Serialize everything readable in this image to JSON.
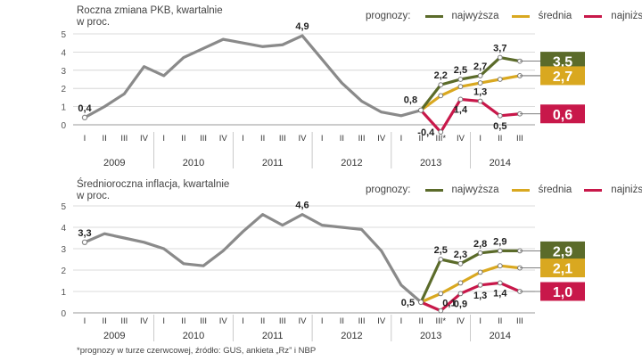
{
  "chart_data": [
    {
      "type": "line",
      "title": "Roczna zmiana PKB, kwartalnie",
      "ylabel": "w proc.",
      "ylim": [
        0,
        5
      ],
      "yticks": [
        0,
        1,
        2,
        3,
        4,
        5
      ],
      "quarter_labels": [
        "I",
        "II",
        "III",
        "IV",
        "I",
        "II",
        "III",
        "IV",
        "I",
        "II",
        "III",
        "IV",
        "I",
        "II",
        "III",
        "IV",
        "I",
        "II",
        "III*",
        "IV",
        "I",
        "II",
        "III"
      ],
      "year_labels": [
        {
          "label": "2009",
          "start": 0
        },
        {
          "label": "2010",
          "start": 4
        },
        {
          "label": "2011",
          "start": 8
        },
        {
          "label": "2012",
          "start": 12
        },
        {
          "label": "2013",
          "start": 16
        },
        {
          "label": "2014",
          "start": 20
        }
      ],
      "legend_title": "prognozy:",
      "colors": {
        "actual": "#8a8a8a",
        "highest": "#5b6b2a",
        "average": "#d9a820",
        "lowest": "#c8184a"
      },
      "actual": {
        "name": "actual",
        "x": [
          0,
          1,
          2,
          3,
          4,
          5,
          6,
          7,
          8,
          9,
          10,
          11,
          12,
          13,
          14,
          15,
          16,
          17
        ],
        "values": [
          0.4,
          1.0,
          1.7,
          3.2,
          2.7,
          3.7,
          4.2,
          4.7,
          4.5,
          4.3,
          4.4,
          4.9,
          3.6,
          2.3,
          1.3,
          0.7,
          0.5,
          0.8
        ]
      },
      "series": [
        {
          "key": "highest",
          "name": "najwyższa",
          "x": [
            17,
            18,
            19,
            20,
            21,
            22
          ],
          "values": [
            0.8,
            2.2,
            2.5,
            2.7,
            3.7,
            3.5
          ]
        },
        {
          "key": "average",
          "name": "średnia",
          "x": [
            17,
            18,
            19,
            20,
            21,
            22
          ],
          "values": [
            0.8,
            1.6,
            2.1,
            2.3,
            2.5,
            2.7
          ]
        },
        {
          "key": "lowest",
          "name": "najniższa",
          "x": [
            17,
            18,
            19,
            20,
            21,
            22
          ],
          "values": [
            0.8,
            -0.4,
            1.4,
            1.3,
            0.5,
            0.6
          ]
        }
      ],
      "annotations": [
        {
          "text": "0,4",
          "x": 0,
          "y": 0.4,
          "pos": "above"
        },
        {
          "text": "4,9",
          "x": 11,
          "y": 4.9,
          "pos": "above"
        },
        {
          "text": "0,8",
          "x": 17,
          "y": 0.8,
          "pos": "above-left"
        },
        {
          "text": "2,2",
          "x": 18,
          "y": 2.2,
          "pos": "above"
        },
        {
          "text": "2,5",
          "x": 19,
          "y": 2.5,
          "pos": "above"
        },
        {
          "text": "2,7",
          "x": 20,
          "y": 2.7,
          "pos": "above"
        },
        {
          "text": "3,7",
          "x": 21,
          "y": 3.7,
          "pos": "above"
        },
        {
          "text": "-0,4",
          "x": 18,
          "y": -0.4,
          "pos": "left"
        },
        {
          "text": "1,4",
          "x": 19,
          "y": 1.4,
          "pos": "below"
        },
        {
          "text": "1,3",
          "x": 20,
          "y": 1.3,
          "pos": "above"
        },
        {
          "text": "0,5",
          "x": 21,
          "y": 0.5,
          "pos": "below"
        }
      ],
      "final_badges": [
        {
          "key": "highest",
          "text": "3,5",
          "y": 3.5
        },
        {
          "key": "average",
          "text": "2,7",
          "y": 2.7
        },
        {
          "key": "lowest",
          "text": "0,6",
          "y": 0.6
        }
      ]
    },
    {
      "type": "line",
      "title": "Średnioroczna inflacja, kwartalnie",
      "ylabel": "w proc.",
      "ylim": [
        0,
        5
      ],
      "yticks": [
        0,
        1,
        2,
        3,
        4,
        5
      ],
      "quarter_labels": [
        "I",
        "II",
        "III",
        "IV",
        "I",
        "II",
        "III",
        "IV",
        "I",
        "II",
        "III",
        "IV",
        "I",
        "II",
        "III",
        "IV",
        "I",
        "II",
        "III*",
        "IV",
        "I",
        "II",
        "III"
      ],
      "year_labels": [
        {
          "label": "2009",
          "start": 0
        },
        {
          "label": "2010",
          "start": 4
        },
        {
          "label": "2011",
          "start": 8
        },
        {
          "label": "2012",
          "start": 12
        },
        {
          "label": "2013",
          "start": 16
        },
        {
          "label": "2014",
          "start": 20
        }
      ],
      "legend_title": "prognozy:",
      "colors": {
        "actual": "#8a8a8a",
        "highest": "#5b6b2a",
        "average": "#d9a820",
        "lowest": "#c8184a"
      },
      "actual": {
        "name": "actual",
        "x": [
          0,
          1,
          2,
          3,
          4,
          5,
          6,
          7,
          8,
          9,
          10,
          11,
          12,
          13,
          14,
          15,
          16,
          17
        ],
        "values": [
          3.3,
          3.7,
          3.5,
          3.3,
          3.0,
          2.3,
          2.2,
          2.9,
          3.8,
          4.6,
          4.1,
          4.6,
          4.1,
          4.0,
          3.9,
          2.9,
          1.3,
          0.5
        ]
      },
      "series": [
        {
          "key": "highest",
          "name": "najwyższa",
          "x": [
            17,
            18,
            19,
            20,
            21,
            22
          ],
          "values": [
            0.5,
            2.5,
            2.3,
            2.8,
            2.9,
            2.9
          ]
        },
        {
          "key": "average",
          "name": "średnia",
          "x": [
            17,
            18,
            19,
            20,
            21,
            22
          ],
          "values": [
            0.5,
            0.9,
            1.4,
            1.9,
            2.2,
            2.1
          ]
        },
        {
          "key": "lowest",
          "name": "najniższa",
          "x": [
            17,
            18,
            19,
            20,
            21,
            22
          ],
          "values": [
            0.5,
            0.1,
            0.9,
            1.3,
            1.4,
            1.0
          ]
        }
      ],
      "annotations": [
        {
          "text": "3,3",
          "x": 0,
          "y": 3.3,
          "pos": "above"
        },
        {
          "text": "4,6",
          "x": 11,
          "y": 4.6,
          "pos": "above"
        },
        {
          "text": "0,5",
          "x": 17,
          "y": 0.5,
          "pos": "left"
        },
        {
          "text": "2,5",
          "x": 18,
          "y": 2.5,
          "pos": "above"
        },
        {
          "text": "2,3",
          "x": 19,
          "y": 2.3,
          "pos": "above"
        },
        {
          "text": "2,8",
          "x": 20,
          "y": 2.8,
          "pos": "above"
        },
        {
          "text": "2,9",
          "x": 21,
          "y": 2.9,
          "pos": "above"
        },
        {
          "text": "0,1",
          "x": 18,
          "y": 0.1,
          "pos": "above-right"
        },
        {
          "text": "0,9",
          "x": 19,
          "y": 0.9,
          "pos": "below"
        },
        {
          "text": "1,3",
          "x": 20,
          "y": 1.3,
          "pos": "below"
        },
        {
          "text": "1,4",
          "x": 21,
          "y": 1.4,
          "pos": "below"
        }
      ],
      "final_badges": [
        {
          "key": "highest",
          "text": "2,9",
          "y": 2.9
        },
        {
          "key": "average",
          "text": "2,1",
          "y": 2.1
        },
        {
          "key": "lowest",
          "text": "1,0",
          "y": 1.0
        }
      ]
    }
  ],
  "labels": {
    "c1_title1": "Roczna zmiana PKB, kwartalnie",
    "c1_title2": "w proc.",
    "c2_title1": "Średnioroczna inflacja, kwartalnie",
    "c2_title2": "w proc.",
    "legend_title": "prognozy:",
    "legend_highest": "najwyższa",
    "legend_average": "średnia",
    "legend_lowest": "najniższa"
  },
  "footnote": "*prognozy w turze czerwcowej, źródło: GUS, ankieta „Rz” i NBP"
}
